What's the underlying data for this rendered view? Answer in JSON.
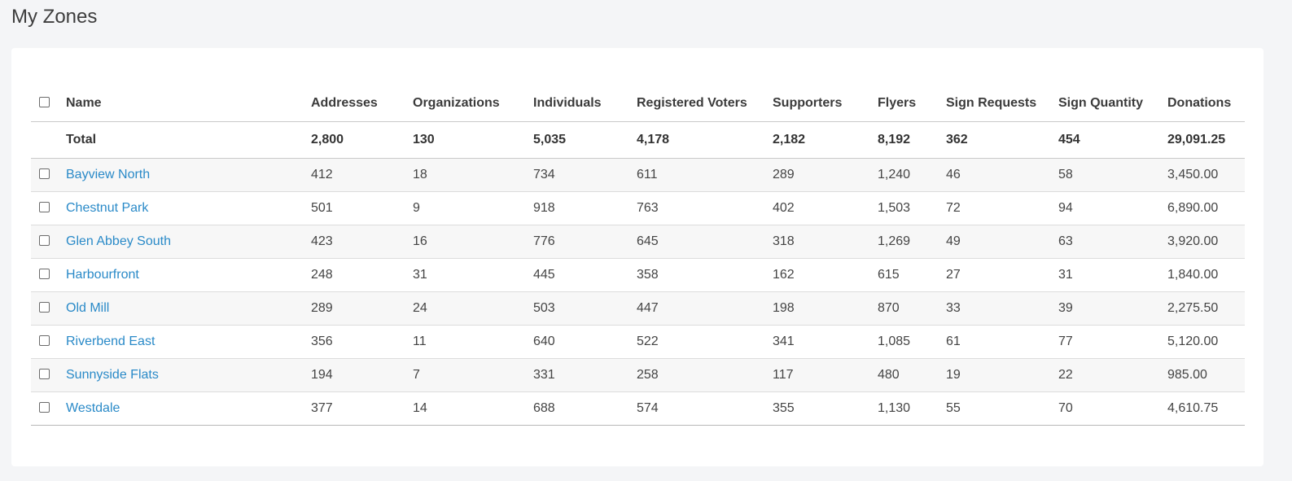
{
  "page": {
    "title": "My Zones"
  },
  "table": {
    "columns": [
      "Name",
      "Addresses",
      "Organizations",
      "Individuals",
      "Registered Voters",
      "Supporters",
      "Flyers",
      "Sign Requests",
      "Sign Quantity",
      "Donations"
    ],
    "total": [
      "Total",
      "2,800",
      "130",
      "5,035",
      "4,178",
      "2,182",
      "8,192",
      "362",
      "454",
      "29,091.25"
    ],
    "rows": [
      [
        "Bayview North",
        "412",
        "18",
        "734",
        "611",
        "289",
        "1,240",
        "46",
        "58",
        "3,450.00"
      ],
      [
        "Chestnut Park",
        "501",
        "9",
        "918",
        "763",
        "402",
        "1,503",
        "72",
        "94",
        "6,890.00"
      ],
      [
        "Glen Abbey South",
        "423",
        "16",
        "776",
        "645",
        "318",
        "1,269",
        "49",
        "63",
        "3,920.00"
      ],
      [
        "Harbourfront",
        "248",
        "31",
        "445",
        "358",
        "162",
        "615",
        "27",
        "31",
        "1,840.00"
      ],
      [
        "Old Mill",
        "289",
        "24",
        "503",
        "447",
        "198",
        "870",
        "33",
        "39",
        "2,275.50"
      ],
      [
        "Riverbend East",
        "356",
        "11",
        "640",
        "522",
        "341",
        "1,085",
        "61",
        "77",
        "5,120.00"
      ],
      [
        "Sunnyside Flats",
        "194",
        "7",
        "331",
        "258",
        "117",
        "480",
        "19",
        "22",
        "985.00"
      ],
      [
        "Westdale",
        "377",
        "14",
        "688",
        "574",
        "355",
        "1,130",
        "55",
        "70",
        "4,610.75"
      ]
    ]
  },
  "colors": {
    "link": "#2a8ac8",
    "background": "#f4f5f7",
    "card": "#ffffff"
  }
}
